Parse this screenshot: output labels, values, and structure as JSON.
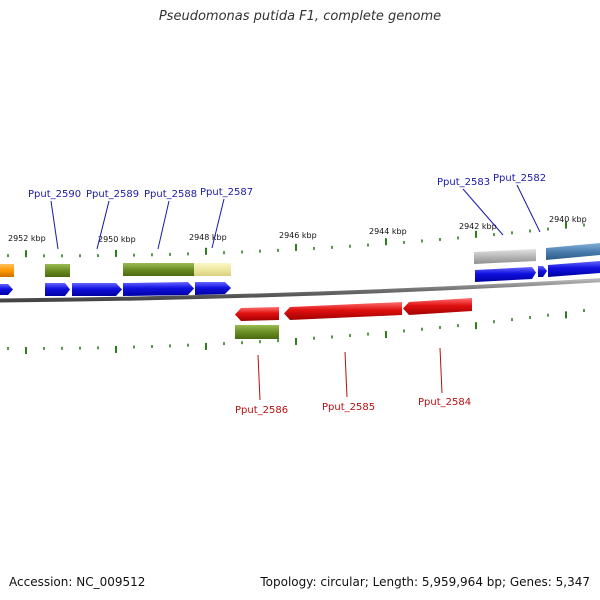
{
  "title": "Pseudomonas putida F1, complete genome",
  "footer": {
    "accession": "Accession: NC_009512",
    "summary": "Topology: circular; Length: 5,959,964 bp; Genes: 5,347"
  },
  "colors": {
    "backbone": "#7a7a7a",
    "tick": "#2e7d1f",
    "cds_blue": "#1010e0",
    "cds_red": "#e01010",
    "gene_olive": "#6b8e23",
    "gene_khaki": "#eee8a0",
    "gene_gray": "#b8b8b8",
    "gene_steel": "#4a7fb0",
    "gene_orange": "#ff9900",
    "label_blue": "#1a1aa8",
    "label_red": "#b81010"
  },
  "ruler": {
    "labels": [
      "2952 kbp",
      "2950 kbp",
      "2948 kbp",
      "2946 kbp",
      "2944 kbp",
      "2942 kbp",
      "2940 kbp"
    ]
  },
  "genes_top": [
    "Pput_2590",
    "Pput_2589",
    "Pput_2588",
    "Pput_2587",
    "Pput_2583",
    "Pput_2582"
  ],
  "genes_bottom": [
    "Pput_2586",
    "Pput_2585",
    "Pput_2584"
  ]
}
